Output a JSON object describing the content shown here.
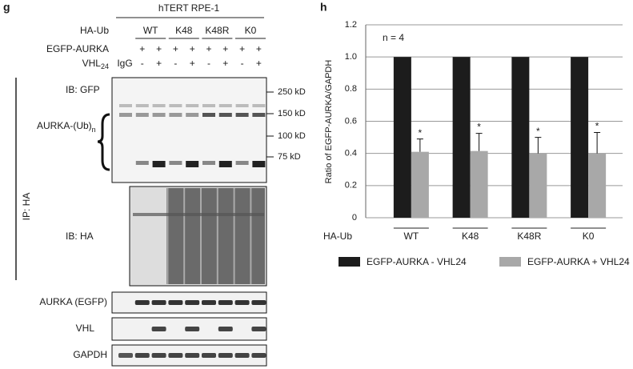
{
  "panel_g": {
    "label": "g",
    "cell_line": "hTERT RPE-1",
    "ha_ub": {
      "label": "HA-Ub",
      "groups": [
        "WT",
        "K48",
        "K48R",
        "K0"
      ]
    },
    "egfp_aurka": {
      "label": "EGFP-AURKA",
      "lanes": [
        "+",
        "+",
        "+",
        "+",
        "+",
        "+",
        "+",
        "+"
      ]
    },
    "vhl": {
      "label": "VHL",
      "label_sub": "24",
      "control": "IgG",
      "lanes": [
        "-",
        "+",
        "-",
        "+",
        "-",
        "+",
        "-",
        "+"
      ]
    },
    "ip": "IP: HA",
    "ib_gfp": {
      "label": "IB: GFP",
      "species": "AURKA-(Ub)",
      "species_sub": "n",
      "markers": [
        "250 kD",
        "150 kD",
        "100 kD",
        "75 kD"
      ]
    },
    "ib_ha": "IB: HA",
    "inputs": [
      "AURKA (EGFP)",
      "VHL",
      "GAPDH"
    ]
  },
  "chart_data": {
    "type": "bar",
    "panel_label": "h",
    "annotation": "n = 4",
    "ylabel": "Ratio of EGFP-AURKA/GAPDH",
    "xlabel": "HA-Ub",
    "categories": [
      "WT",
      "K48",
      "K48R",
      "K0"
    ],
    "series": [
      {
        "name": "EGFP-AURKA - VHL24",
        "color": "#1c1c1c",
        "values": [
          1,
          1,
          1,
          1
        ]
      },
      {
        "name": "EGFP-AURKA + VHL24",
        "color": "#a8a8a8",
        "values": [
          0.41,
          0.415,
          0.4,
          0.4
        ],
        "errors": [
          0.08,
          0.11,
          0.1,
          0.13
        ],
        "significance": [
          "*",
          "*",
          "*",
          "*"
        ]
      }
    ],
    "ylim": [
      0,
      1.2
    ],
    "yticks": [
      0,
      0.2,
      0.4,
      0.6,
      0.8,
      {
        "value": 1,
        "label": "1.0"
      },
      1.2
    ],
    "grid": true,
    "legend": "bottom"
  }
}
